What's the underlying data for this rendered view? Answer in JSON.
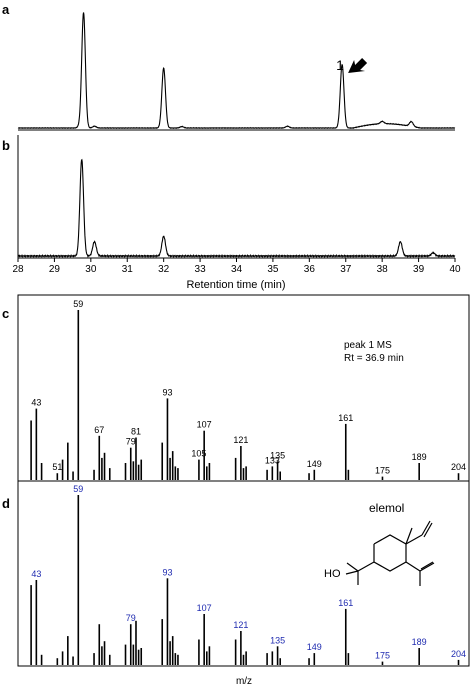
{
  "colors": {
    "ink": "#000000",
    "label_blue": "#1f2bb0",
    "frame": "#000000",
    "background": "#ffffff"
  },
  "chart_data": [
    {
      "panel": "a",
      "type": "line",
      "xlabel": "",
      "ylabel": "",
      "xlim": [
        28,
        40
      ],
      "ylim": [
        0,
        1
      ],
      "peaks": [
        {
          "x": 29.8,
          "height": 0.96,
          "width": 0.05
        },
        {
          "x": 32.0,
          "height": 0.5,
          "width": 0.05
        },
        {
          "x": 36.9,
          "height": 0.53,
          "width": 0.05
        },
        {
          "x": 29.7,
          "height": 0.02,
          "width": 0.05
        },
        {
          "x": 30.1,
          "height": 0.015,
          "width": 0.05
        },
        {
          "x": 32.5,
          "height": 0.012,
          "width": 0.05
        },
        {
          "x": 35.4,
          "height": 0.015,
          "width": 0.05
        },
        {
          "x": 38.0,
          "height": 0.02,
          "width": 0.05
        },
        {
          "x": 38.8,
          "height": 0.04,
          "width": 0.05
        }
      ],
      "hump": {
        "from": 37.2,
        "to": 39.8,
        "height": 0.04
      },
      "annotation": {
        "label": "1",
        "peak_x": 36.9,
        "icon": "arrow-pointing-down-left"
      }
    },
    {
      "panel": "b",
      "type": "line",
      "xlabel": "Retention time (min)",
      "ylabel": "",
      "xlim": [
        28,
        40
      ],
      "ylim": [
        0,
        1
      ],
      "x_ticks": [
        28,
        29,
        30,
        31,
        32,
        33,
        34,
        35,
        36,
        37,
        38,
        39,
        40
      ],
      "peaks": [
        {
          "x": 29.75,
          "height": 0.88,
          "width": 0.05
        },
        {
          "x": 30.1,
          "height": 0.13,
          "width": 0.05
        },
        {
          "x": 32.0,
          "height": 0.18,
          "width": 0.05
        },
        {
          "x": 38.5,
          "height": 0.13,
          "width": 0.05
        },
        {
          "x": 39.4,
          "height": 0.03,
          "width": 0.05
        }
      ]
    },
    {
      "panel": "c",
      "type": "bar",
      "xlabel": "",
      "ylabel": "",
      "xlim": [
        36,
        208
      ],
      "ylim": [
        0,
        100
      ],
      "annotation_lines": [
        "peak 1 MS",
        "Rt = 36.9 min"
      ],
      "spectrum": [
        [
          41,
          35
        ],
        [
          43,
          42
        ],
        [
          45,
          10
        ],
        [
          51,
          4
        ],
        [
          53,
          12
        ],
        [
          55,
          22
        ],
        [
          57,
          5
        ],
        [
          59,
          100
        ],
        [
          65,
          6
        ],
        [
          67,
          26
        ],
        [
          68,
          13
        ],
        [
          69,
          16
        ],
        [
          71,
          7
        ],
        [
          77,
          10
        ],
        [
          79,
          19
        ],
        [
          80,
          11
        ],
        [
          81,
          25
        ],
        [
          82,
          9
        ],
        [
          83,
          12
        ],
        [
          91,
          22
        ],
        [
          93,
          48
        ],
        [
          94,
          13
        ],
        [
          95,
          17
        ],
        [
          96,
          8
        ],
        [
          97,
          7
        ],
        [
          105,
          12
        ],
        [
          107,
          29
        ],
        [
          108,
          8
        ],
        [
          109,
          10
        ],
        [
          119,
          13
        ],
        [
          121,
          20
        ],
        [
          122,
          7
        ],
        [
          123,
          8
        ],
        [
          131,
          6
        ],
        [
          133,
          8
        ],
        [
          135,
          11
        ],
        [
          136,
          5
        ],
        [
          147,
          4
        ],
        [
          149,
          6
        ],
        [
          161,
          33
        ],
        [
          162,
          6
        ],
        [
          175,
          2
        ],
        [
          189,
          10
        ],
        [
          204,
          4
        ]
      ],
      "labels": [
        {
          "mz": 43,
          "text": "43"
        },
        {
          "mz": 51,
          "text": "51"
        },
        {
          "mz": 59,
          "text": "59"
        },
        {
          "mz": 67,
          "text": "67"
        },
        {
          "mz": 79,
          "text": "79"
        },
        {
          "mz": 81,
          "text": "81"
        },
        {
          "mz": 93,
          "text": "93"
        },
        {
          "mz": 105,
          "text": "105"
        },
        {
          "mz": 107,
          "text": "107"
        },
        {
          "mz": 121,
          "text": "121"
        },
        {
          "mz": 133,
          "text": "133"
        },
        {
          "mz": 135,
          "text": "135"
        },
        {
          "mz": 149,
          "text": "149"
        },
        {
          "mz": 161,
          "text": "161"
        },
        {
          "mz": 175,
          "text": "175"
        },
        {
          "mz": 189,
          "text": "189"
        },
        {
          "mz": 204,
          "text": "204"
        }
      ]
    },
    {
      "panel": "d",
      "type": "bar",
      "xlabel": "m/z",
      "ylabel": "",
      "xlim": [
        36,
        208
      ],
      "ylim": [
        0,
        100
      ],
      "annotation_lines": [
        "elemol"
      ],
      "spectrum": [
        [
          41,
          47
        ],
        [
          43,
          50
        ],
        [
          45,
          6
        ],
        [
          51,
          4
        ],
        [
          53,
          8
        ],
        [
          55,
          17
        ],
        [
          57,
          5
        ],
        [
          59,
          100
        ],
        [
          65,
          7
        ],
        [
          67,
          24
        ],
        [
          68,
          11
        ],
        [
          69,
          14
        ],
        [
          71,
          6
        ],
        [
          77,
          12
        ],
        [
          79,
          24
        ],
        [
          80,
          12
        ],
        [
          81,
          26
        ],
        [
          82,
          9
        ],
        [
          83,
          10
        ],
        [
          91,
          27
        ],
        [
          93,
          51
        ],
        [
          94,
          14
        ],
        [
          95,
          17
        ],
        [
          96,
          7
        ],
        [
          97,
          6
        ],
        [
          105,
          15
        ],
        [
          107,
          30
        ],
        [
          108,
          8
        ],
        [
          109,
          11
        ],
        [
          119,
          15
        ],
        [
          121,
          20
        ],
        [
          122,
          6
        ],
        [
          123,
          8
        ],
        [
          131,
          7
        ],
        [
          133,
          8
        ],
        [
          135,
          11
        ],
        [
          136,
          4
        ],
        [
          147,
          4
        ],
        [
          149,
          7
        ],
        [
          161,
          33
        ],
        [
          162,
          7
        ],
        [
          175,
          2
        ],
        [
          189,
          10
        ],
        [
          204,
          3
        ]
      ],
      "labels": [
        {
          "mz": 43,
          "text": "43"
        },
        {
          "mz": 59,
          "text": "59"
        },
        {
          "mz": 79,
          "text": "79"
        },
        {
          "mz": 93,
          "text": "93"
        },
        {
          "mz": 107,
          "text": "107"
        },
        {
          "mz": 121,
          "text": "121"
        },
        {
          "mz": 135,
          "text": "135"
        },
        {
          "mz": 149,
          "text": "149"
        },
        {
          "mz": 161,
          "text": "161"
        },
        {
          "mz": 175,
          "text": "175"
        },
        {
          "mz": 189,
          "text": "189"
        },
        {
          "mz": 204,
          "text": "204"
        }
      ],
      "structure": {
        "name": "elemol",
        "substituent_label": "HO",
        "icon": "elemol-structure"
      }
    }
  ]
}
